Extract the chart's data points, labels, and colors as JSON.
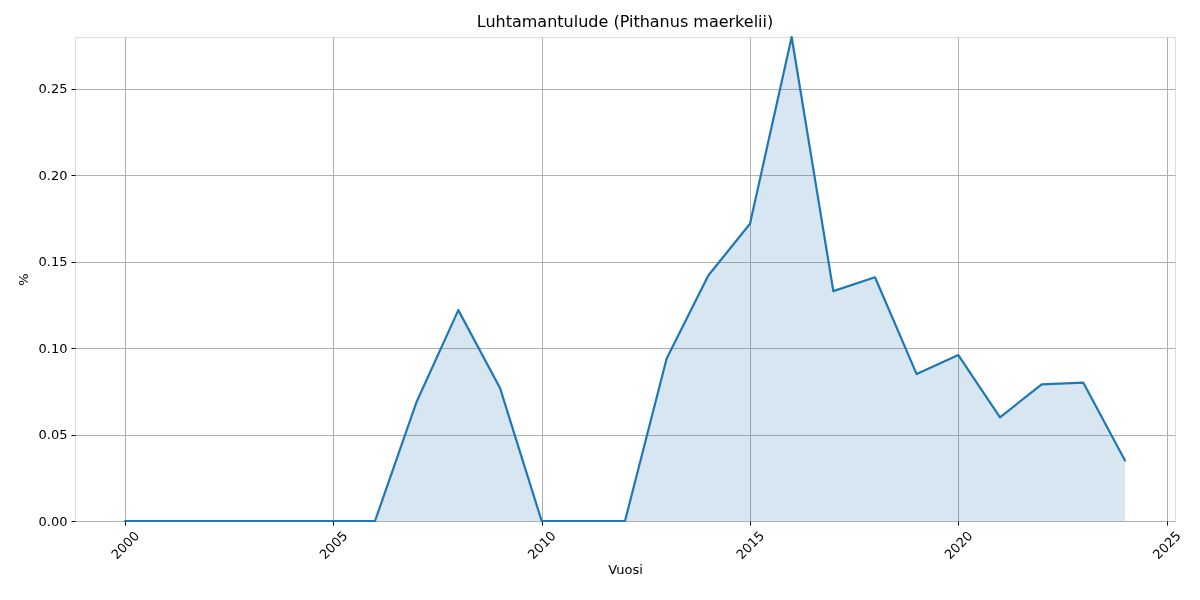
{
  "chart_data": {
    "type": "area",
    "title": "Luhtamantulude (Pithanus maerkelii)",
    "xlabel": "Vuosi",
    "ylabel": "%",
    "x": [
      2000,
      2001,
      2002,
      2003,
      2004,
      2005,
      2006,
      2007,
      2008,
      2009,
      2010,
      2011,
      2012,
      2013,
      2014,
      2015,
      2016,
      2017,
      2018,
      2019,
      2020,
      2021,
      2022,
      2023,
      2024
    ],
    "series": [
      {
        "color": "#1f77b4",
        "values": [
          0,
          0,
          0,
          0,
          0,
          0,
          0,
          0.069,
          0.122,
          0.077,
          0,
          0,
          0,
          0.094,
          0.142,
          0.172,
          0.28,
          0.133,
          0.141,
          0.085,
          0.096,
          0.06,
          0.079,
          0.08,
          0.035
        ]
      }
    ],
    "xlim": [
      1998.8,
      2025.2
    ],
    "xticks": [
      2000,
      2005,
      2010,
      2015,
      2020,
      2025
    ],
    "ylim": [
      0,
      0.28
    ],
    "yticks": [
      {
        "value": 0,
        "label": "0.00"
      },
      0.05,
      {
        "value": 0.1,
        "label": "0.10"
      },
      0.15,
      {
        "value": 0.2,
        "label": "0.20"
      },
      0.25
    ],
    "grid": true,
    "line_style": "solid",
    "marker": "none"
  }
}
